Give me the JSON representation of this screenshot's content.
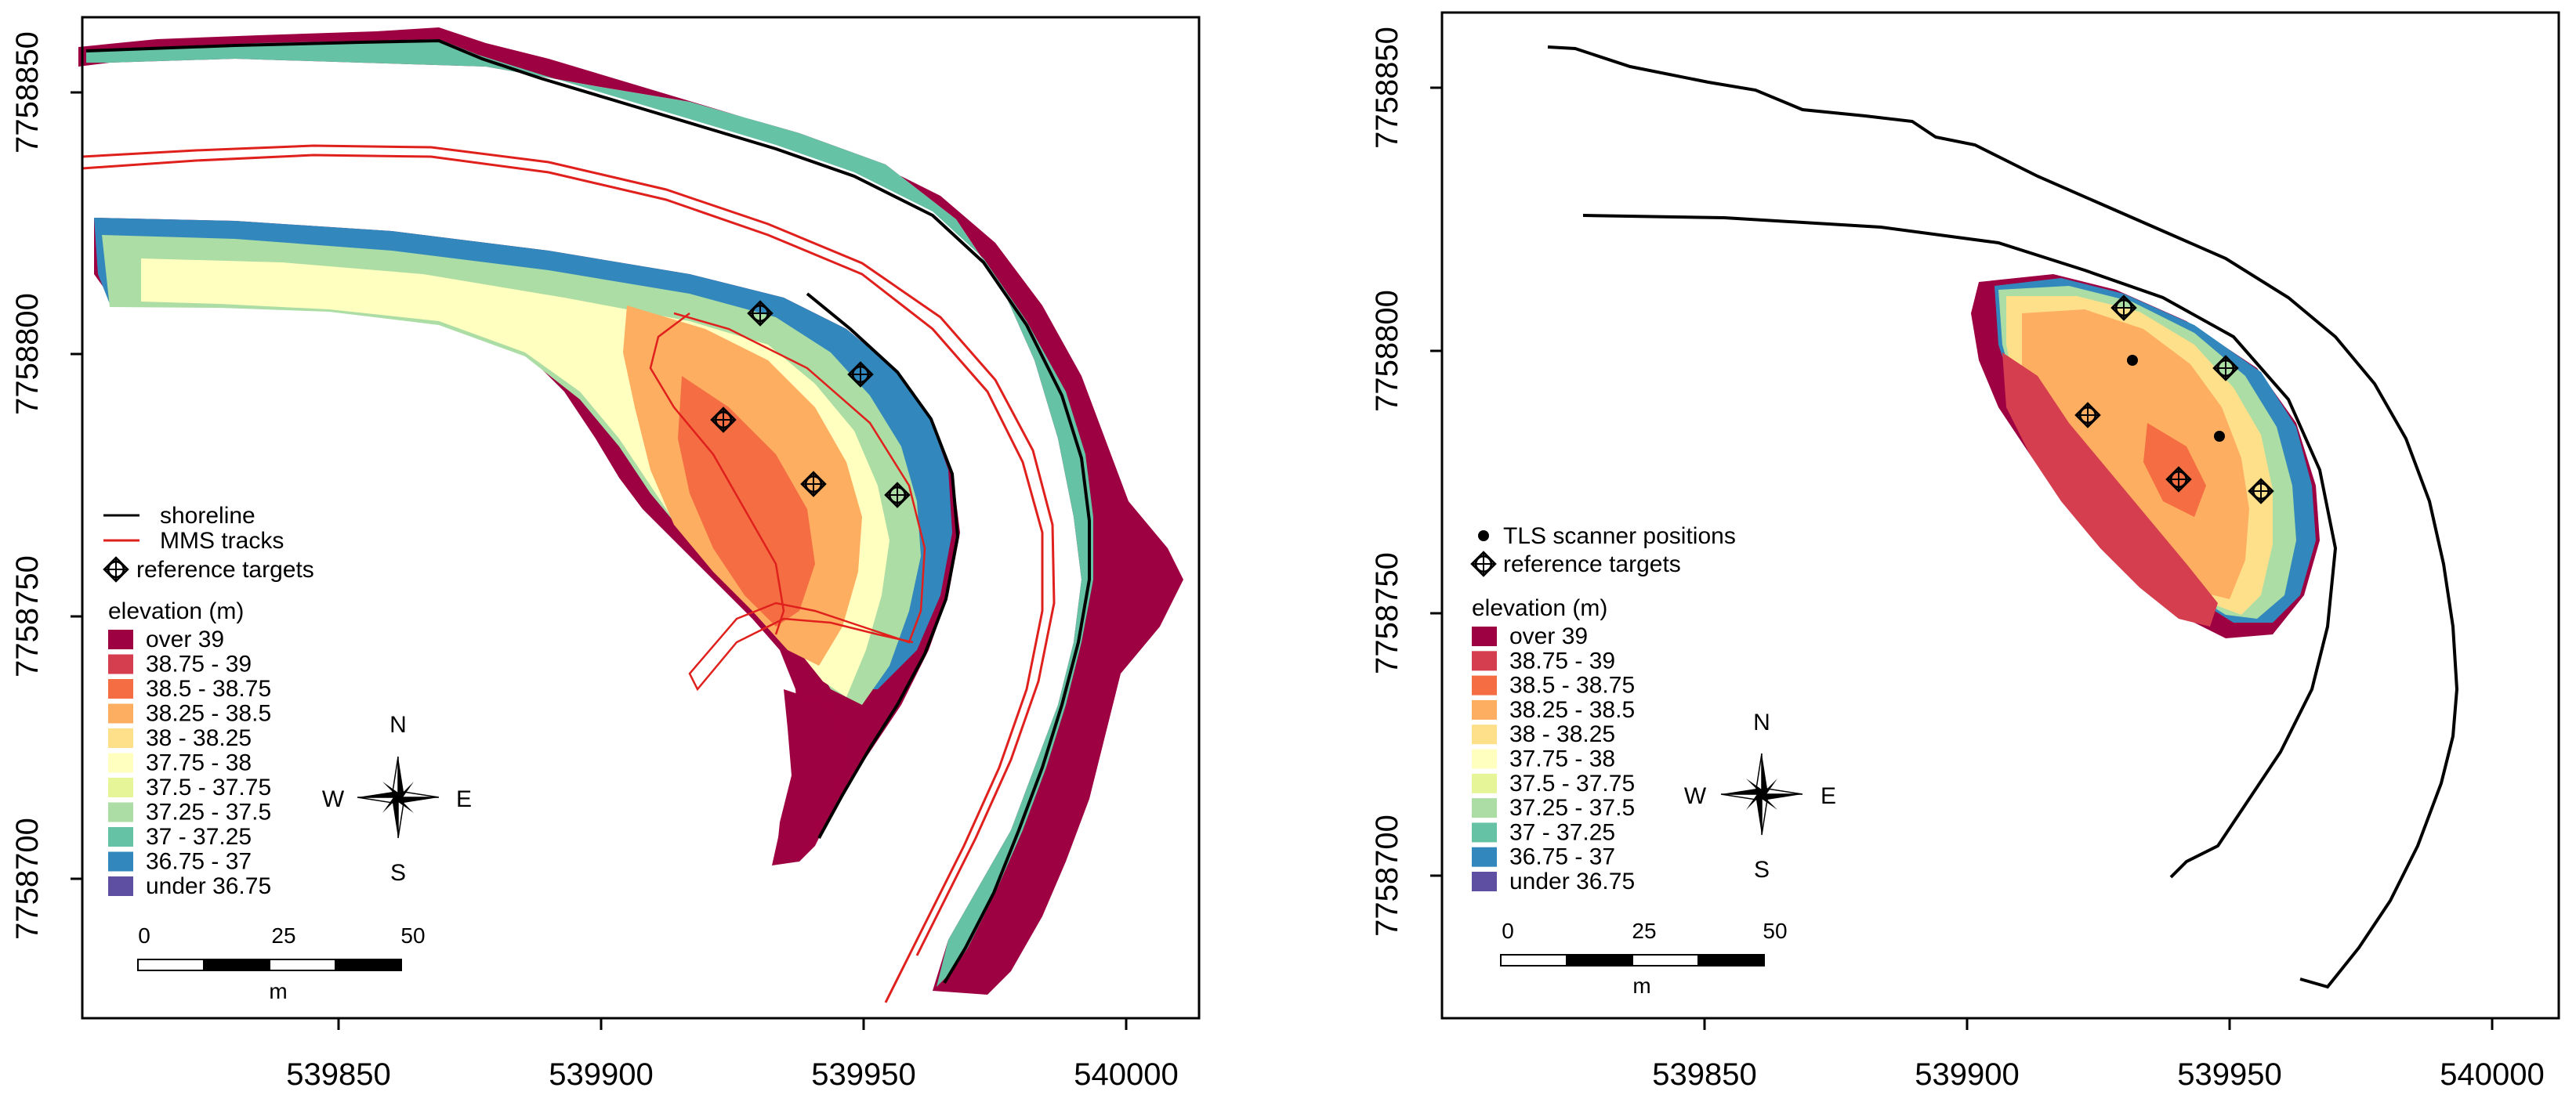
{
  "maps": [
    {
      "id": "left",
      "y_ticks": [
        "7758850",
        "7758800",
        "7758750",
        "7758700"
      ],
      "x_ticks": [
        "539850",
        "539900",
        "539950",
        "540000"
      ],
      "legend": {
        "items": [
          {
            "symbol": "line",
            "color": "#000000",
            "label": "shoreline"
          },
          {
            "symbol": "line",
            "color": "#e0201c",
            "label": "MMS tracks"
          },
          {
            "symbol": "target",
            "color": "#000000",
            "label": "reference targets"
          }
        ],
        "elevation_title": "elevation (m)",
        "classes": [
          {
            "label": "over 39",
            "color": "#9e0142"
          },
          {
            "label": "38.75 - 39",
            "color": "#d53e4f"
          },
          {
            "label": "38.5 - 38.75",
            "color": "#f46d43"
          },
          {
            "label": "38.25 - 38.5",
            "color": "#fdae61"
          },
          {
            "label": "38 - 38.25",
            "color": "#fee08b"
          },
          {
            "label": "37.75 - 38",
            "color": "#ffffbf"
          },
          {
            "label": "37.5 - 37.75",
            "color": "#e6f598"
          },
          {
            "label": "37.25 - 37.5",
            "color": "#abdda4"
          },
          {
            "label": "37 - 37.25",
            "color": "#66c2a5"
          },
          {
            "label": "36.75 - 37",
            "color": "#3288bd"
          },
          {
            "label": "under 36.75",
            "color": "#5e4fa2"
          }
        ]
      },
      "compass": {
        "n": "N",
        "s": "S",
        "e": "E",
        "w": "W"
      },
      "scale": {
        "labels": [
          "0",
          "25",
          "50"
        ],
        "unit": "m"
      }
    },
    {
      "id": "right",
      "y_ticks": [
        "7758850",
        "7758800",
        "7758750",
        "7758700"
      ],
      "x_ticks": [
        "539850",
        "539900",
        "539950",
        "540000"
      ],
      "legend": {
        "items": [
          {
            "symbol": "dot",
            "color": "#000000",
            "label": "TLS scanner positions"
          },
          {
            "symbol": "target",
            "color": "#000000",
            "label": "reference targets"
          }
        ],
        "elevation_title": "elevation (m)",
        "classes": [
          {
            "label": "over 39",
            "color": "#9e0142"
          },
          {
            "label": "38.75 - 39",
            "color": "#d53e4f"
          },
          {
            "label": "38.5 - 38.75",
            "color": "#f46d43"
          },
          {
            "label": "38.25 - 38.5",
            "color": "#fdae61"
          },
          {
            "label": "38 - 38.25",
            "color": "#fee08b"
          },
          {
            "label": "37.75 - 38",
            "color": "#ffffbf"
          },
          {
            "label": "37.5 - 37.75",
            "color": "#e6f598"
          },
          {
            "label": "37.25 - 37.5",
            "color": "#abdda4"
          },
          {
            "label": "37 - 37.25",
            "color": "#66c2a5"
          },
          {
            "label": "36.75 - 37",
            "color": "#3288bd"
          },
          {
            "label": "under 36.75",
            "color": "#5e4fa2"
          }
        ]
      },
      "compass": {
        "n": "N",
        "s": "S",
        "e": "E",
        "w": "W"
      },
      "scale": {
        "labels": [
          "0",
          "25",
          "50"
        ],
        "unit": "m"
      }
    }
  ]
}
